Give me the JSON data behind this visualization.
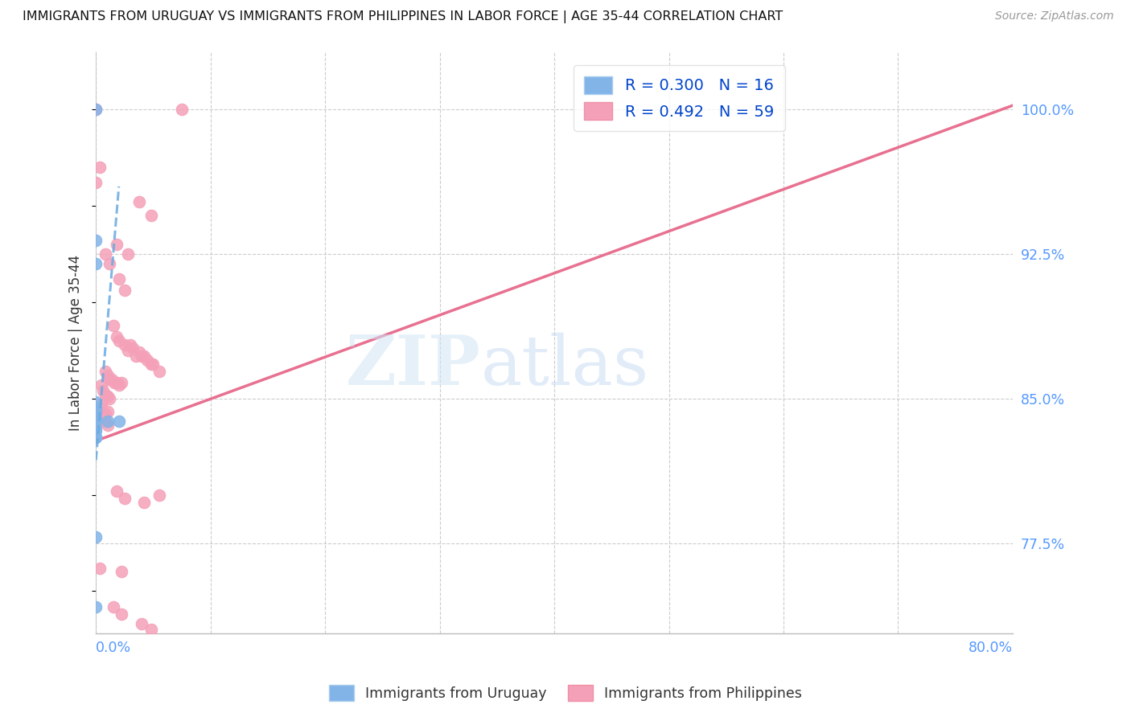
{
  "title": "IMMIGRANTS FROM URUGUAY VS IMMIGRANTS FROM PHILIPPINES IN LABOR FORCE | AGE 35-44 CORRELATION CHART",
  "source": "Source: ZipAtlas.com",
  "ylabel": "In Labor Force | Age 35-44",
  "ytick_labels": [
    "77.5%",
    "85.0%",
    "92.5%",
    "100.0%"
  ],
  "ytick_values": [
    0.775,
    0.85,
    0.925,
    1.0
  ],
  "xlim": [
    0.0,
    0.8
  ],
  "ylim": [
    0.728,
    1.03
  ],
  "legend_label_ury": "R = 0.300   N = 16",
  "legend_label_phi": "R = 0.492   N = 59",
  "uruguay_color": "#82b4e8",
  "philippines_color": "#f4a0b8",
  "trend_uruguay_color": "#6aaae0",
  "trend_philippines_color": "#e87090",
  "watermark_zip": "ZIP",
  "watermark_atlas": "atlas",
  "ury_pts": [
    [
      0.0,
      1.0
    ],
    [
      0.0,
      0.932
    ],
    [
      0.0,
      0.92
    ],
    [
      0.0,
      0.848
    ],
    [
      0.0,
      0.845
    ],
    [
      0.0,
      0.843
    ],
    [
      0.0,
      0.84
    ],
    [
      0.0,
      0.838
    ],
    [
      0.0,
      0.835
    ],
    [
      0.0,
      0.833
    ],
    [
      0.0,
      0.83
    ],
    [
      0.0,
      0.83
    ],
    [
      0.0,
      0.778
    ],
    [
      0.0,
      0.742
    ],
    [
      0.01,
      0.838
    ],
    [
      0.02,
      0.838
    ]
  ],
  "phi_pts": [
    [
      0.0,
      1.0
    ],
    [
      0.003,
      0.97
    ],
    [
      0.0,
      0.962
    ],
    [
      0.038,
      0.952
    ],
    [
      0.048,
      0.945
    ],
    [
      0.018,
      0.93
    ],
    [
      0.028,
      0.925
    ],
    [
      0.008,
      0.925
    ],
    [
      0.012,
      0.92
    ],
    [
      0.02,
      0.912
    ],
    [
      0.025,
      0.906
    ],
    [
      0.075,
      1.0
    ],
    [
      0.015,
      0.888
    ],
    [
      0.018,
      0.882
    ],
    [
      0.02,
      0.88
    ],
    [
      0.025,
      0.878
    ],
    [
      0.028,
      0.875
    ],
    [
      0.03,
      0.878
    ],
    [
      0.032,
      0.876
    ],
    [
      0.035,
      0.872
    ],
    [
      0.038,
      0.874
    ],
    [
      0.04,
      0.872
    ],
    [
      0.042,
      0.872
    ],
    [
      0.045,
      0.87
    ],
    [
      0.048,
      0.868
    ],
    [
      0.05,
      0.868
    ],
    [
      0.055,
      0.864
    ],
    [
      0.008,
      0.864
    ],
    [
      0.01,
      0.862
    ],
    [
      0.012,
      0.86
    ],
    [
      0.014,
      0.86
    ],
    [
      0.016,
      0.858
    ],
    [
      0.018,
      0.858
    ],
    [
      0.02,
      0.857
    ],
    [
      0.022,
      0.858
    ],
    [
      0.005,
      0.857
    ],
    [
      0.006,
      0.854
    ],
    [
      0.008,
      0.852
    ],
    [
      0.01,
      0.851
    ],
    [
      0.012,
      0.85
    ],
    [
      0.005,
      0.847
    ],
    [
      0.005,
      0.845
    ],
    [
      0.006,
      0.842
    ],
    [
      0.008,
      0.842
    ],
    [
      0.01,
      0.843
    ],
    [
      0.005,
      0.84
    ],
    [
      0.006,
      0.84
    ],
    [
      0.008,
      0.838
    ],
    [
      0.01,
      0.836
    ],
    [
      0.018,
      0.802
    ],
    [
      0.025,
      0.798
    ],
    [
      0.042,
      0.796
    ],
    [
      0.003,
      0.762
    ],
    [
      0.022,
      0.76
    ],
    [
      0.055,
      0.8
    ],
    [
      0.015,
      0.742
    ],
    [
      0.022,
      0.738
    ],
    [
      0.04,
      0.733
    ],
    [
      0.048,
      0.73
    ]
  ],
  "ury_trend_x": [
    0.0,
    0.02
  ],
  "ury_trend_y": [
    0.818,
    0.96
  ],
  "phi_trend_x": [
    0.0,
    0.8
  ],
  "phi_trend_y": [
    0.828,
    1.002
  ]
}
